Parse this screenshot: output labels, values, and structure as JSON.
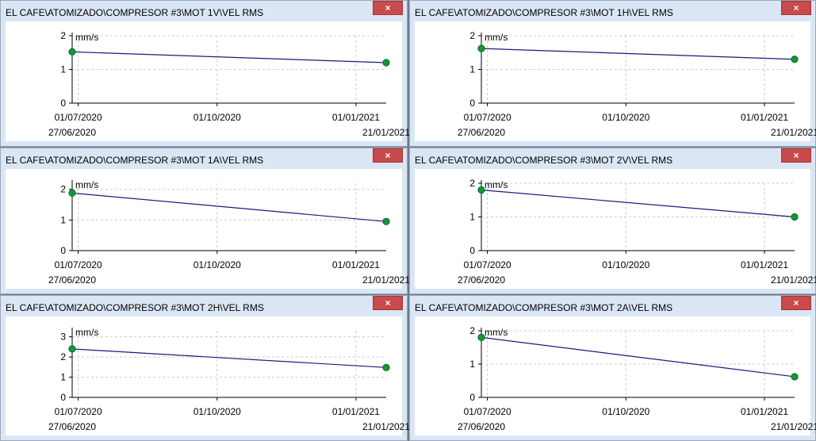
{
  "colors": {
    "line": "#1a1a80",
    "marker": "#119933",
    "grid": "#cccccc",
    "close": "#c84a4a"
  },
  "close_icon": "×",
  "panels": [
    {
      "title": "EL CAFE\\ATOMIZADO\\COMPRESOR #3\\MOT 1V\\VEL RMS"
    },
    {
      "title": "EL CAFE\\ATOMIZADO\\COMPRESOR #3\\MOT 1H\\VEL RMS"
    },
    {
      "title": "EL CAFE\\ATOMIZADO\\COMPRESOR #3\\MOT 1A\\VEL RMS"
    },
    {
      "title": "EL CAFE\\ATOMIZADO\\COMPRESOR #3\\MOT 2V\\VEL RMS"
    },
    {
      "title": "EL CAFE\\ATOMIZADO\\COMPRESOR #3\\MOT 2H\\VEL RMS"
    },
    {
      "title": "EL CAFE\\ATOMIZADO\\COMPRESOR #3\\MOT 2A\\VEL RMS"
    }
  ],
  "chart_data": [
    {
      "type": "line",
      "ylabel": "mm/s",
      "ylim": [
        0,
        2
      ],
      "yticks": [
        0,
        1,
        2
      ],
      "xticks": [
        "01/07/2020",
        "01/10/2020",
        "01/01/2021"
      ],
      "xrange": [
        "27/06/2020",
        "21/01/2021"
      ],
      "grid": true,
      "series": [
        {
          "x": [
            "27/06/2020",
            "21/01/2021"
          ],
          "values": [
            1.52,
            1.2
          ]
        }
      ]
    },
    {
      "type": "line",
      "ylabel": "mm/s",
      "ylim": [
        0,
        2
      ],
      "yticks": [
        0,
        1,
        2
      ],
      "xticks": [
        "01/07/2020",
        "01/10/2020",
        "01/01/2021"
      ],
      "xrange": [
        "27/06/2020",
        "21/01/2021"
      ],
      "grid": true,
      "series": [
        {
          "x": [
            "27/06/2020",
            "21/01/2021"
          ],
          "values": [
            1.62,
            1.3
          ]
        }
      ]
    },
    {
      "type": "line",
      "ylabel": "mm/s",
      "ylim": [
        0,
        2.2
      ],
      "yticks": [
        0,
        1,
        2
      ],
      "xticks": [
        "01/07/2020",
        "01/10/2020",
        "01/01/2021"
      ],
      "xrange": [
        "27/06/2020",
        "21/01/2021"
      ],
      "grid": true,
      "series": [
        {
          "x": [
            "27/06/2020",
            "21/01/2021"
          ],
          "values": [
            1.88,
            0.95
          ]
        }
      ]
    },
    {
      "type": "line",
      "ylabel": "mm/s",
      "ylim": [
        0,
        2
      ],
      "yticks": [
        0,
        1,
        2
      ],
      "xticks": [
        "01/07/2020",
        "01/10/2020",
        "01/01/2021"
      ],
      "xrange": [
        "27/06/2020",
        "21/01/2021"
      ],
      "grid": true,
      "series": [
        {
          "x": [
            "27/06/2020",
            "21/01/2021"
          ],
          "values": [
            1.8,
            1.0
          ]
        }
      ]
    },
    {
      "type": "line",
      "ylabel": "mm/s",
      "ylim": [
        0,
        3.3
      ],
      "yticks": [
        0,
        1,
        2,
        3
      ],
      "xticks": [
        "01/07/2020",
        "01/10/2020",
        "01/01/2021"
      ],
      "xrange": [
        "27/06/2020",
        "21/01/2021"
      ],
      "grid": true,
      "series": [
        {
          "x": [
            "27/06/2020",
            "21/01/2021"
          ],
          "values": [
            2.4,
            1.48
          ]
        }
      ]
    },
    {
      "type": "line",
      "ylabel": "mm/s",
      "ylim": [
        0,
        2
      ],
      "yticks": [
        0,
        1,
        2
      ],
      "xticks": [
        "01/07/2020",
        "01/10/2020",
        "01/01/2021"
      ],
      "xrange": [
        "27/06/2020",
        "21/01/2021"
      ],
      "grid": true,
      "series": [
        {
          "x": [
            "27/06/2020",
            "21/01/2021"
          ],
          "values": [
            1.8,
            0.62
          ]
        }
      ]
    }
  ]
}
